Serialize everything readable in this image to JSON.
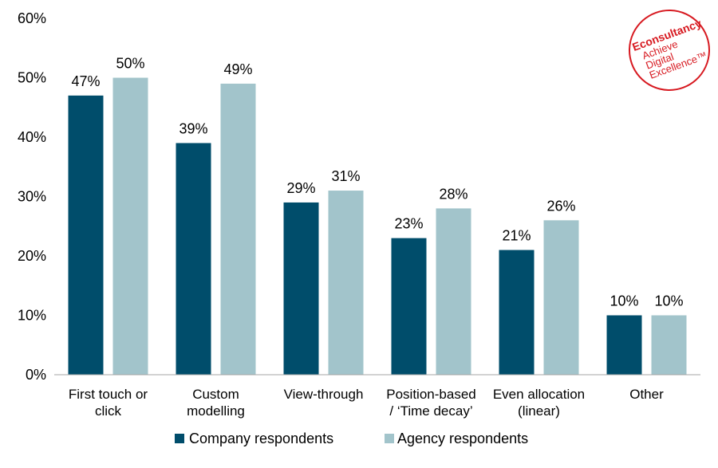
{
  "chart_data": {
    "type": "bar",
    "title": "",
    "xlabel": "",
    "ylabel": "",
    "ylim": [
      0,
      60
    ],
    "yticks": [
      "0%",
      "10%",
      "20%",
      "30%",
      "40%",
      "50%",
      "60%"
    ],
    "categories": [
      [
        "First touch or",
        "click"
      ],
      [
        "Custom",
        "modelling"
      ],
      [
        "View-through"
      ],
      [
        "Position-based",
        "/ ‘Time decay’"
      ],
      [
        "Even allocation",
        "(linear)"
      ],
      [
        "Other"
      ]
    ],
    "series": [
      {
        "name": "Company respondents",
        "color": "#004d6b",
        "values": [
          47,
          39,
          29,
          23,
          21,
          10
        ],
        "labels": [
          "47%",
          "39%",
          "29%",
          "23%",
          "21%",
          "10%"
        ]
      },
      {
        "name": "Agency respondents",
        "color": "#a2c4cb",
        "values": [
          50,
          49,
          31,
          28,
          26,
          10
        ],
        "labels": [
          "50%",
          "49%",
          "31%",
          "28%",
          "26%",
          "10%"
        ]
      }
    ],
    "grid": false,
    "legend": "bottom-center"
  },
  "logo": {
    "brand": "Econsultancy",
    "tagline": [
      "Achieve",
      "Digital",
      "Excellence™"
    ],
    "color": "#d71920"
  }
}
